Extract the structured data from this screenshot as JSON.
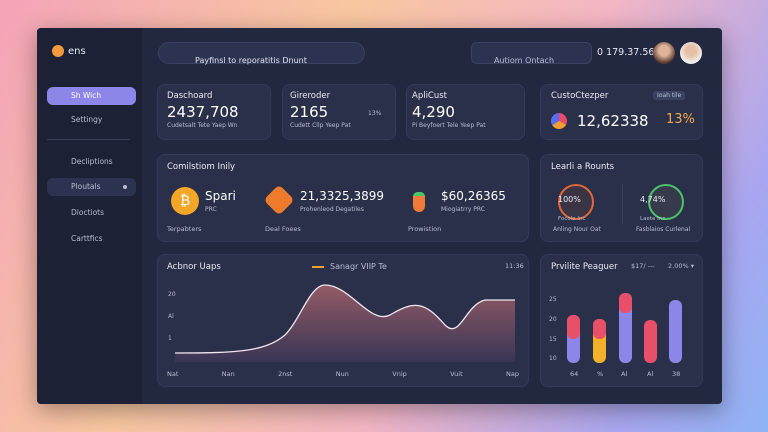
{
  "logo": "ens",
  "sidebar": {
    "items": [
      "Sh Wich",
      "Settingy",
      "Decliptions",
      "Ploutals",
      "Dioctiots",
      "Carttfics"
    ]
  },
  "topbar": {
    "search": "Payfinsl to reporatitis Dnunt",
    "action": "Autiom Ontach",
    "time": "0 179.37.56"
  },
  "cards": [
    {
      "title": "Daschoard",
      "value": "2437,708",
      "sub": "Cudetsalt Tete Yaep Wn"
    },
    {
      "title": "Gireroder",
      "value": "2165",
      "badge": "13%",
      "sub": "Cudett Cllp Yeep Pat"
    },
    {
      "title": "ApliCust",
      "value": "4,290",
      "sub": "Pi Beyfoert Tele Yeep Pat"
    },
    {
      "title": "CustoCtezper",
      "badge": "Ioah tile",
      "value": "12,62338",
      "change": "13%"
    }
  ],
  "commission": {
    "title": "Comilstiom Inily",
    "items": [
      {
        "name": "Spari",
        "sub": "PRC",
        "caption": "Terpabters"
      },
      {
        "name": "21,3325,3899",
        "sub": "Prohenleod Degatiles",
        "caption": "Deal Foees"
      },
      {
        "name": "$60,26365",
        "sub": "Miogiatrry PRC",
        "caption": "Prowistion"
      }
    ]
  },
  "learn": {
    "title": "Learli a Rounts",
    "items": [
      {
        "value": "100%",
        "sub": "Focole Inc",
        "caption": "Anling Nour Oat"
      },
      {
        "value": "4,74%",
        "sub": "Laete Inc",
        "caption": "Fasblaios Curlenal"
      }
    ]
  },
  "activity": {
    "title": "Acbnor Uaps",
    "legend": "Sanagr VIIP Te",
    "time": "11:36",
    "yticks": [
      "20",
      "Al",
      "1"
    ],
    "xticks": [
      "Nat",
      "Nan",
      "2nst",
      "Nun",
      "Vnip",
      "Vuit",
      "Nap"
    ]
  },
  "private": {
    "title": "Prvilite Peaguer",
    "filter1": "$17/ ---",
    "filter2": "2.00% ▾",
    "yticks": [
      "25",
      "20",
      "15",
      "10"
    ],
    "xticks": [
      "64",
      "%",
      "Al",
      "Al",
      "38"
    ]
  }
}
